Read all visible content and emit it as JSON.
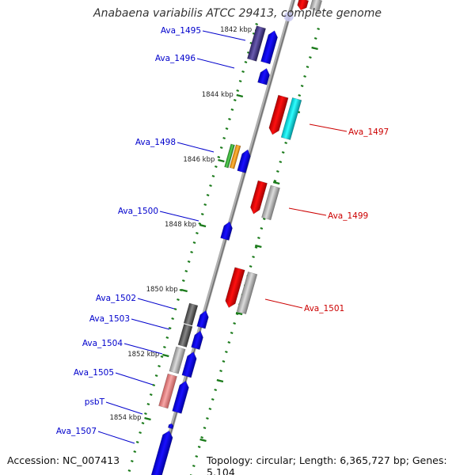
{
  "title": "Anabaena variabilis ATCC 29413, complete genome",
  "accession": "Accession: NC_007413",
  "topology": "Topology: circular; Length: 6,365,727 bp; Genes: 5,104",
  "colors": {
    "left_label": "#0000cc",
    "right_label": "#cc0000",
    "tick": "#1a7a1a",
    "backbone": "#888888",
    "blue": "#0a00f0",
    "red": "#ee0000",
    "cyan": "#00e0e8",
    "gray": "#a8a8a8",
    "dark_gray": "#5a5a5a",
    "purple": "#4a3d8f",
    "pink": "#e88888",
    "green": "#2ea52e",
    "orange": "#ff9a00"
  },
  "scale_labels": [
    "1842 kbp",
    "1844 kbp",
    "1846 kbp",
    "1848 kbp",
    "1850 kbp",
    "1852 kbp",
    "1854 kbp"
  ],
  "genes_left": [
    {
      "label": "Ava_1495"
    },
    {
      "label": "Ava_1496"
    },
    {
      "label": "Ava_1498"
    },
    {
      "label": "Ava_1500"
    },
    {
      "label": "Ava_1502"
    },
    {
      "label": "Ava_1503"
    },
    {
      "label": "Ava_1504"
    },
    {
      "label": "Ava_1505"
    },
    {
      "label": "psbT"
    },
    {
      "label": "Ava_1507"
    }
  ],
  "genes_right": [
    {
      "label": "Ava_1497"
    },
    {
      "label": "Ava_1499"
    },
    {
      "label": "Ava_1501"
    }
  ]
}
